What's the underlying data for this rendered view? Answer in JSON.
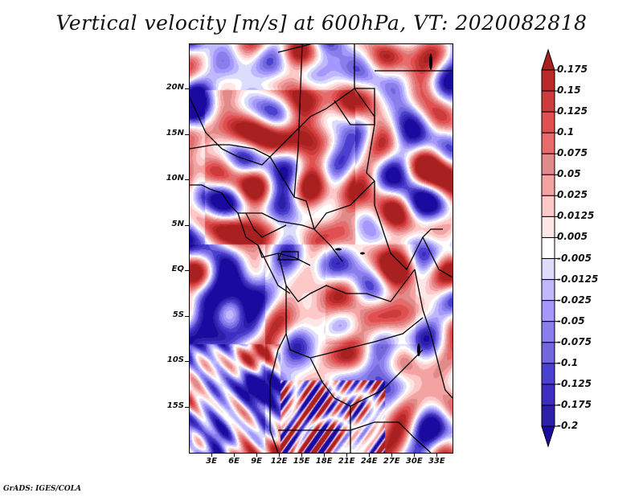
{
  "title": "Vertical velocity [m/s] at 600hPa, VT: 2020082818",
  "footer": "GrADS: IGES/COLA",
  "map": {
    "variable": "Vertical velocity",
    "units": "m/s",
    "level": "600hPa",
    "valid_time": "2020082818",
    "lon_range": [
      0,
      35
    ],
    "lat_range": [
      -20,
      25
    ],
    "y_axis_labels": [
      {
        "label": "20N",
        "lat": 20
      },
      {
        "label": "15N",
        "lat": 15
      },
      {
        "label": "10N",
        "lat": 10
      },
      {
        "label": "5N",
        "lat": 5
      },
      {
        "label": "EQ",
        "lat": 0
      },
      {
        "label": "5S",
        "lat": -5
      },
      {
        "label": "10S",
        "lat": -10
      },
      {
        "label": "15S",
        "lat": -15
      }
    ],
    "x_axis_labels": [
      {
        "label": "3E",
        "lon": 3
      },
      {
        "label": "6E",
        "lon": 6
      },
      {
        "label": "9E",
        "lon": 9
      },
      {
        "label": "12E",
        "lon": 12
      },
      {
        "label": "15E",
        "lon": 15
      },
      {
        "label": "18E",
        "lon": 18
      },
      {
        "label": "21E",
        "lon": 21
      },
      {
        "label": "24E",
        "lon": 24
      },
      {
        "label": "27E",
        "lon": 27
      },
      {
        "label": "30E",
        "lon": 30
      },
      {
        "label": "33E",
        "lon": 33
      }
    ]
  },
  "colorbar": {
    "labels": [
      "0.175",
      "0.15",
      "0.125",
      "0.1",
      "0.075",
      "0.05",
      "0.025",
      "0.0125",
      "0.005",
      "-0.005",
      "-0.0125",
      "-0.025",
      "-0.05",
      "-0.075",
      "-0.1",
      "-0.125",
      "-0.175",
      "-0.2"
    ],
    "colors": [
      "#a8201f",
      "#b92b2b",
      "#cc3c3c",
      "#e05050",
      "#e66b6b",
      "#e08a8a",
      "#f4a3a3",
      "#fcc8c8",
      "#fde6e6",
      "#ffffff",
      "#dcdcfc",
      "#c0b8fc",
      "#a498fc",
      "#8a7eec",
      "#7268dc",
      "#4c40d0",
      "#3d2ec0",
      "#2c20a8",
      "#1a0aa0"
    ]
  }
}
